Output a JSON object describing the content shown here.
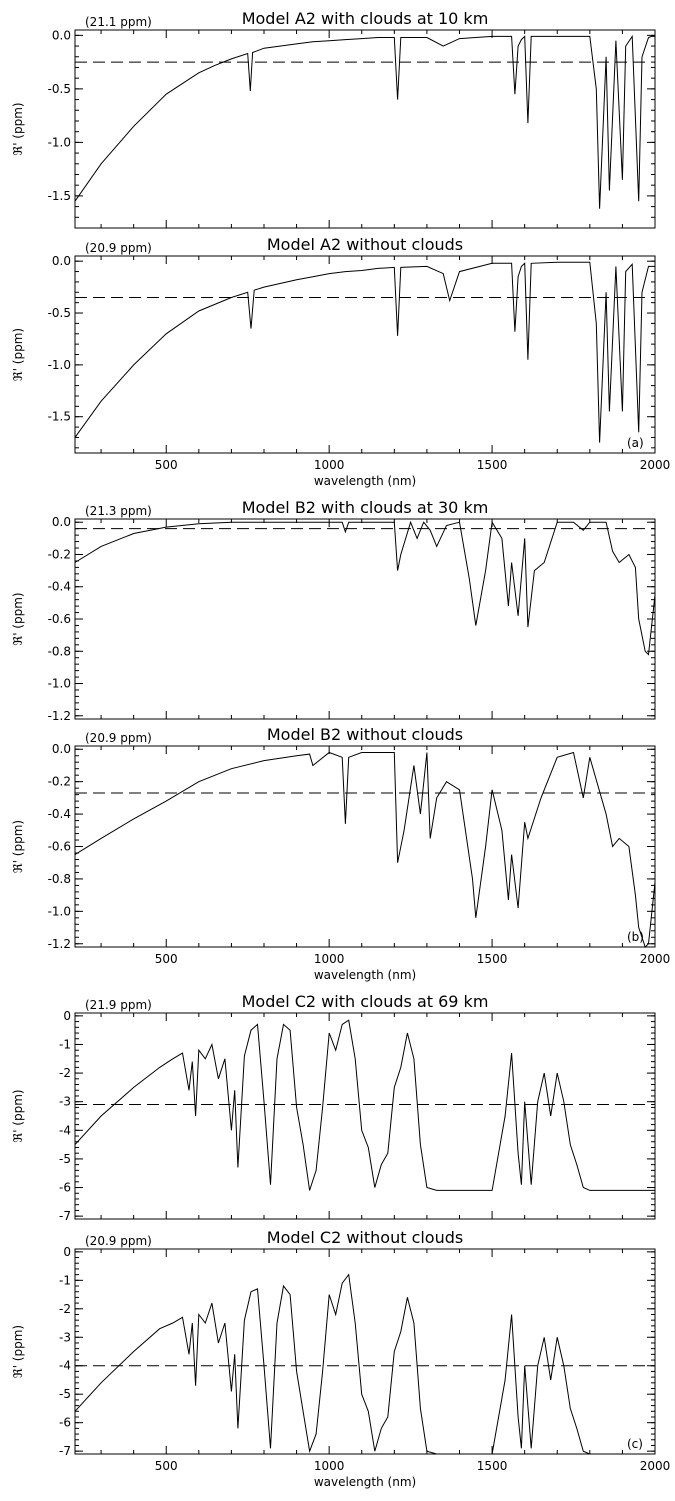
{
  "chart_data": [
    {
      "type": "line",
      "title": "Model A2 with clouds at 10 km",
      "annotation": "(21.1 ppm)",
      "ylabel": "ℜ' (ppm)",
      "xlim": [
        220,
        2000
      ],
      "ylim": [
        -1.8,
        0.05
      ],
      "yticks": [
        "0.0",
        "-0.5",
        "-1.0",
        "-1.5"
      ],
      "mean": -0.25,
      "x": [
        220,
        300,
        400,
        500,
        600,
        650,
        700,
        750,
        758,
        765,
        800,
        900,
        950,
        1000,
        1050,
        1100,
        1150,
        1200,
        1210,
        1220,
        1300,
        1350,
        1400,
        1500,
        1560,
        1570,
        1580,
        1590,
        1600,
        1610,
        1620,
        1700,
        1800,
        1820,
        1830,
        1850,
        1860,
        1880,
        1900,
        1910,
        1930,
        1950,
        1960,
        1980,
        1990,
        2000
      ],
      "values": [
        -1.55,
        -1.2,
        -0.85,
        -0.55,
        -0.35,
        -0.28,
        -0.22,
        -0.17,
        -0.52,
        -0.16,
        -0.12,
        -0.08,
        -0.06,
        -0.05,
        -0.04,
        -0.03,
        -0.02,
        -0.02,
        -0.6,
        -0.02,
        -0.02,
        -0.1,
        -0.03,
        -0.01,
        -0.01,
        -0.55,
        -0.1,
        -0.04,
        -0.01,
        -0.82,
        -0.01,
        -0.01,
        -0.01,
        -0.5,
        -1.62,
        -0.2,
        -1.45,
        -0.05,
        -1.35,
        -0.1,
        -0.01,
        -1.55,
        -0.2,
        -0.02,
        -0.01,
        -0.01
      ],
      "xlabel": ""
    },
    {
      "type": "line",
      "title": "Model A2 without clouds",
      "annotation": "(20.9 ppm)",
      "ylabel": "ℜ' (ppm)",
      "xlim": [
        220,
        2000
      ],
      "ylim": [
        -1.85,
        0.05
      ],
      "yticks": [
        "0.0",
        "-0.5",
        "-1.0",
        "-1.5"
      ],
      "mean": -0.35,
      "x": [
        220,
        300,
        400,
        500,
        600,
        700,
        750,
        760,
        770,
        800,
        900,
        950,
        1000,
        1050,
        1100,
        1150,
        1200,
        1210,
        1220,
        1300,
        1350,
        1370,
        1400,
        1500,
        1560,
        1570,
        1580,
        1590,
        1600,
        1610,
        1620,
        1700,
        1800,
        1820,
        1830,
        1850,
        1860,
        1880,
        1900,
        1910,
        1930,
        1950,
        1960,
        1980,
        1990,
        2000
      ],
      "values": [
        -1.7,
        -1.35,
        -1.0,
        -0.7,
        -0.48,
        -0.35,
        -0.3,
        -0.65,
        -0.28,
        -0.25,
        -0.18,
        -0.15,
        -0.12,
        -0.1,
        -0.09,
        -0.07,
        -0.06,
        -0.72,
        -0.06,
        -0.05,
        -0.12,
        -0.38,
        -0.1,
        -0.02,
        -0.02,
        -0.68,
        -0.15,
        -0.05,
        -0.02,
        -0.95,
        -0.02,
        -0.01,
        -0.01,
        -0.6,
        -1.75,
        -0.3,
        -1.45,
        -0.05,
        -1.45,
        -0.1,
        -0.03,
        -1.65,
        -0.3,
        -0.05,
        -0.05,
        -0.05
      ],
      "xlabel": "wavelength (nm)",
      "panel_label": "(a)"
    },
    {
      "type": "line",
      "title": "Model B2 with clouds at 30 km",
      "annotation": "(21.3 ppm)",
      "ylabel": "ℜ' (ppm)",
      "xlim": [
        220,
        2000
      ],
      "ylim": [
        -1.22,
        0.02
      ],
      "yticks": [
        "0.0",
        "-0.2",
        "-0.4",
        "-0.6",
        "-0.8",
        "-1.0",
        "-1.2"
      ],
      "mean": -0.04,
      "x": [
        220,
        300,
        400,
        500,
        600,
        700,
        800,
        900,
        1000,
        1040,
        1050,
        1060,
        1100,
        1200,
        1210,
        1220,
        1250,
        1270,
        1290,
        1310,
        1330,
        1360,
        1400,
        1430,
        1450,
        1480,
        1500,
        1530,
        1550,
        1560,
        1580,
        1600,
        1610,
        1630,
        1660,
        1700,
        1750,
        1780,
        1800,
        1850,
        1870,
        1890,
        1920,
        1940,
        1950,
        1970,
        1980,
        2000
      ],
      "values": [
        -0.25,
        -0.15,
        -0.07,
        -0.03,
        -0.01,
        0.0,
        0.0,
        0.0,
        0.0,
        0.0,
        -0.06,
        0.0,
        0.0,
        0.0,
        -0.3,
        -0.2,
        0.0,
        -0.1,
        0.0,
        -0.05,
        -0.15,
        -0.02,
        0.0,
        -0.35,
        -0.64,
        -0.3,
        0.0,
        -0.1,
        -0.52,
        -0.25,
        -0.58,
        -0.1,
        -0.65,
        -0.3,
        -0.25,
        0.0,
        0.0,
        -0.05,
        0.0,
        0.0,
        -0.18,
        -0.25,
        -0.2,
        -0.28,
        -0.6,
        -0.8,
        -0.82,
        -0.45
      ],
      "xlabel": ""
    },
    {
      "type": "line",
      "title": "Model B2 without clouds",
      "annotation": "(20.9 ppm)",
      "ylabel": "ℜ' (ppm)",
      "xlim": [
        220,
        2000
      ],
      "ylim": [
        -1.22,
        0.02
      ],
      "yticks": [
        "0.0",
        "-0.2",
        "-0.4",
        "-0.6",
        "-0.8",
        "-1.0",
        "-1.2"
      ],
      "mean": -0.27,
      "x": [
        220,
        300,
        400,
        500,
        600,
        700,
        800,
        900,
        940,
        950,
        1000,
        1040,
        1050,
        1060,
        1100,
        1200,
        1210,
        1230,
        1260,
        1280,
        1300,
        1310,
        1330,
        1360,
        1400,
        1440,
        1450,
        1480,
        1500,
        1530,
        1550,
        1560,
        1580,
        1600,
        1610,
        1650,
        1700,
        1750,
        1780,
        1800,
        1850,
        1870,
        1890,
        1920,
        1940,
        1950,
        1970,
        1980,
        2000
      ],
      "values": [
        -0.65,
        -0.55,
        -0.43,
        -0.32,
        -0.2,
        -0.12,
        -0.07,
        -0.04,
        -0.03,
        -0.1,
        -0.02,
        -0.05,
        -0.46,
        -0.05,
        -0.02,
        -0.02,
        -0.7,
        -0.5,
        -0.1,
        -0.4,
        -0.02,
        -0.55,
        -0.3,
        -0.2,
        -0.25,
        -0.8,
        -1.04,
        -0.6,
        -0.25,
        -0.5,
        -0.93,
        -0.65,
        -0.98,
        -0.45,
        -0.55,
        -0.3,
        -0.05,
        -0.02,
        -0.3,
        -0.05,
        -0.4,
        -0.6,
        -0.55,
        -0.6,
        -0.9,
        -1.1,
        -1.22,
        -1.2,
        -0.82
      ],
      "xlabel": "wavelength (nm)",
      "panel_label": "(b)"
    },
    {
      "type": "line",
      "title": "Model C2 with clouds at 69 km",
      "annotation": "(21.9 ppm)",
      "ylabel": "ℜ' (ppm)",
      "xlim": [
        220,
        2000
      ],
      "ylim": [
        -7.1,
        0.1
      ],
      "yticks": [
        "0",
        "-1",
        "-2",
        "-3",
        "-4",
        "-5",
        "-6",
        "-7"
      ],
      "mean": -3.1,
      "x": [
        220,
        300,
        400,
        480,
        520,
        550,
        570,
        580,
        590,
        600,
        620,
        640,
        660,
        680,
        700,
        710,
        720,
        740,
        760,
        780,
        800,
        820,
        840,
        860,
        880,
        900,
        920,
        940,
        960,
        980,
        1000,
        1020,
        1040,
        1060,
        1080,
        1100,
        1120,
        1140,
        1160,
        1180,
        1200,
        1220,
        1240,
        1260,
        1280,
        1300,
        1330,
        1400,
        1500,
        1540,
        1560,
        1580,
        1590,
        1600,
        1620,
        1640,
        1660,
        1680,
        1700,
        1720,
        1740,
        1760,
        1780,
        1800,
        1850,
        1900,
        2000
      ],
      "values": [
        -4.5,
        -3.5,
        -2.5,
        -1.8,
        -1.5,
        -1.3,
        -2.6,
        -1.6,
        -3.5,
        -1.2,
        -1.5,
        -1.0,
        -2.2,
        -1.5,
        -4.0,
        -2.6,
        -5.3,
        -1.4,
        -0.5,
        -0.3,
        -3.0,
        -5.9,
        -1.5,
        -0.3,
        -0.5,
        -3.2,
        -4.5,
        -6.1,
        -5.4,
        -3.2,
        -0.6,
        -1.2,
        -0.3,
        -0.15,
        -1.5,
        -4.0,
        -4.6,
        -6.0,
        -5.2,
        -4.8,
        -2.5,
        -1.8,
        -0.6,
        -1.5,
        -4.5,
        -6.0,
        -6.1,
        -6.1,
        -6.1,
        -3.5,
        -1.3,
        -4.8,
        -5.9,
        -3.0,
        -5.9,
        -3.0,
        -2.0,
        -3.5,
        -2.0,
        -3.0,
        -4.5,
        -5.2,
        -6.0,
        -6.1,
        -6.1,
        -6.1,
        -6.1
      ],
      "xlabel": ""
    },
    {
      "type": "line",
      "title": "Model C2 without clouds",
      "annotation": "(20.9 ppm)",
      "ylabel": "ℜ' (ppm)",
      "xlim": [
        220,
        2000
      ],
      "ylim": [
        -7.1,
        0.1
      ],
      "yticks": [
        "0",
        "-1",
        "-2",
        "-3",
        "-4",
        "-5",
        "-6",
        "-7"
      ],
      "mean": -4.0,
      "x": [
        220,
        300,
        400,
        480,
        520,
        550,
        570,
        580,
        590,
        600,
        620,
        640,
        660,
        680,
        700,
        710,
        720,
        740,
        760,
        780,
        800,
        820,
        840,
        860,
        880,
        900,
        920,
        940,
        960,
        980,
        1000,
        1020,
        1040,
        1060,
        1080,
        1100,
        1120,
        1140,
        1160,
        1180,
        1200,
        1220,
        1240,
        1260,
        1280,
        1300,
        1330,
        1400,
        1500,
        1540,
        1560,
        1580,
        1590,
        1600,
        1620,
        1640,
        1660,
        1680,
        1700,
        1720,
        1740,
        1760,
        1780,
        1800,
        1850,
        1900,
        2000
      ],
      "values": [
        -5.6,
        -4.6,
        -3.5,
        -2.7,
        -2.5,
        -2.3,
        -3.6,
        -2.5,
        -4.7,
        -2.2,
        -2.5,
        -1.8,
        -3.2,
        -2.5,
        -4.9,
        -3.6,
        -6.2,
        -2.4,
        -1.4,
        -1.3,
        -4.0,
        -6.9,
        -2.5,
        -1.2,
        -1.5,
        -4.2,
        -5.6,
        -7.0,
        -6.4,
        -4.2,
        -1.5,
        -2.2,
        -1.1,
        -0.8,
        -2.5,
        -5.0,
        -5.6,
        -7.0,
        -6.2,
        -5.8,
        -3.5,
        -2.8,
        -1.6,
        -2.5,
        -5.5,
        -7.0,
        -7.1,
        -7.1,
        -7.1,
        -4.5,
        -2.2,
        -5.8,
        -6.9,
        -4.0,
        -6.9,
        -4.0,
        -3.0,
        -4.5,
        -3.0,
        -4.0,
        -5.5,
        -6.2,
        -7.0,
        -7.1,
        -7.1,
        -7.1,
        -7.1
      ],
      "xlabel": "wavelength (nm)",
      "panel_label": "(c)"
    }
  ],
  "xticks": [
    500,
    1000,
    1500,
    2000
  ]
}
